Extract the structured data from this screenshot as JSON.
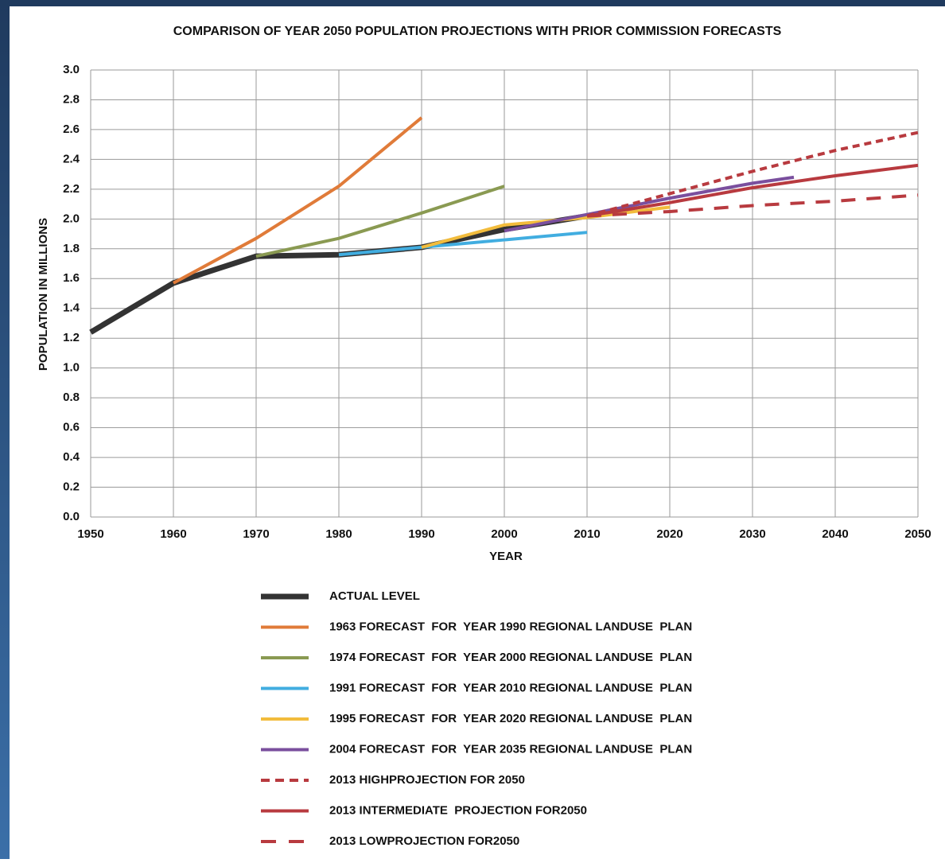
{
  "chart_data": {
    "type": "line",
    "title": "COMPARISON OF YEAR 2050 POPULATION PROJECTIONS WITH PRIOR COMMISSION FORECASTS",
    "xlabel": "YEAR",
    "ylabel": "POPULATION IN MILLIONS",
    "xlim": [
      1950,
      2050
    ],
    "xticks": [
      1950,
      1960,
      1970,
      1980,
      1990,
      2000,
      2010,
      2020,
      2030,
      2040,
      2050
    ],
    "ylim": [
      0,
      3
    ],
    "yticks": [
      {
        "value": 0,
        "label": "0.0"
      },
      0.2,
      0.4,
      0.6,
      0.8,
      {
        "value": 1,
        "label": "1.0"
      },
      1.2,
      1.4,
      1.6,
      1.8,
      {
        "value": 2,
        "label": "2.0"
      },
      2.2,
      2.4,
      2.6,
      2.8,
      {
        "value": 3,
        "label": "3.0"
      }
    ],
    "grid": true,
    "series": [
      {
        "name": "ACTUAL LEVEL",
        "color": "#333333",
        "line_style": "solid",
        "x": [
          1950,
          1960,
          1970,
          1980,
          1990,
          2000,
          2010
        ],
        "values": [
          1.24,
          1.57,
          1.75,
          1.76,
          1.81,
          1.93,
          2.02
        ]
      },
      {
        "name": "1963 FORECAST  FOR  YEAR 1990 REGIONAL LANDUSE  PLAN",
        "color": "#e07b39",
        "line_style": "solid",
        "x": [
          1960,
          1970,
          1980,
          1990
        ],
        "values": [
          1.57,
          1.87,
          2.22,
          2.68
        ]
      },
      {
        "name": "1974 FORECAST  FOR  YEAR 2000 REGIONAL LANDUSE  PLAN",
        "color": "#8a9a52",
        "line_style": "solid",
        "x": [
          1970,
          1980,
          1990,
          2000
        ],
        "values": [
          1.75,
          1.87,
          2.04,
          2.22
        ]
      },
      {
        "name": "1991 FORECAST  FOR  YEAR 2010 REGIONAL LANDUSE  PLAN",
        "color": "#41ade0",
        "line_style": "solid",
        "x": [
          1980,
          1990,
          2000,
          2010
        ],
        "values": [
          1.76,
          1.81,
          1.86,
          1.91
        ]
      },
      {
        "name": "1995 FORECAST  FOR  YEAR 2020 REGIONAL LANDUSE  PLAN",
        "color": "#f2bc3c",
        "line_style": "solid",
        "x": [
          1990,
          2000,
          2010,
          2020
        ],
        "values": [
          1.81,
          1.96,
          2.01,
          2.08
        ]
      },
      {
        "name": "2004 FORECAST  FOR  YEAR 2035 REGIONAL LANDUSE  PLAN",
        "color": "#7a4f9e",
        "line_style": "solid",
        "x": [
          2000,
          2010,
          2020,
          2030,
          2035
        ],
        "values": [
          1.92,
          2.03,
          2.14,
          2.24,
          2.28
        ]
      },
      {
        "name": "2013 HIGHPROJECTION FOR 2050",
        "color": "#b83a3f",
        "line_style": "dotted",
        "x": [
          2010,
          2020,
          2030,
          2040,
          2050
        ],
        "values": [
          2.02,
          2.17,
          2.32,
          2.46,
          2.58
        ]
      },
      {
        "name": "2013 INTERMEDIATE  PROJECTION FOR2050",
        "color": "#b83a3f",
        "line_style": "solid",
        "x": [
          2010,
          2020,
          2030,
          2040,
          2050
        ],
        "values": [
          2.02,
          2.11,
          2.21,
          2.29,
          2.36
        ]
      },
      {
        "name": "2013 LOWPROJECTION FOR2050",
        "color": "#b83a3f",
        "line_style": "dashed",
        "x": [
          2010,
          2020,
          2030,
          2040,
          2050
        ],
        "values": [
          2.02,
          2.05,
          2.09,
          2.12,
          2.16
        ]
      }
    ]
  }
}
